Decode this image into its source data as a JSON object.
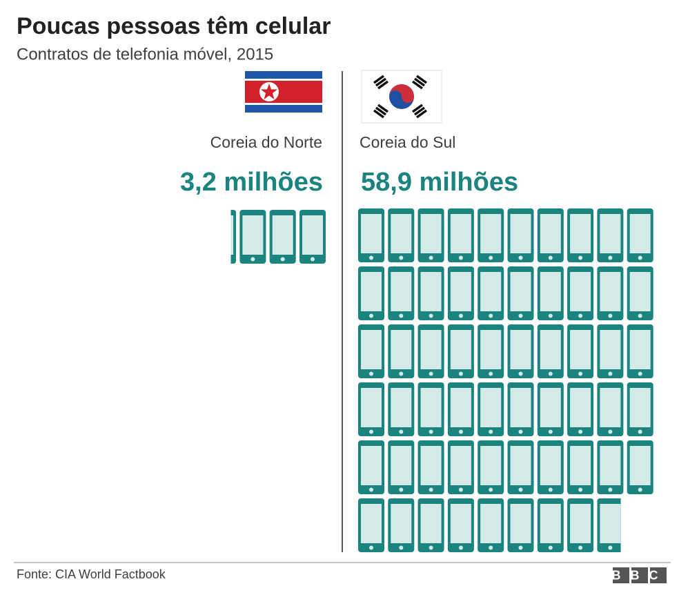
{
  "chart_data": {
    "type": "pictogram",
    "title": "Poucas pessoas têm celular",
    "subtitle": "Contratos de telefonia móvel, 2015",
    "categories": [
      "Coreia do Norte",
      "Coreia do Sul"
    ],
    "values": [
      3.2,
      58.9
    ],
    "value_labels": [
      "3,2 milhões",
      "58,9 milhões"
    ],
    "color": "#1b847e",
    "source": "Fonte: CIA World Factbook",
    "logo": "BBC"
  }
}
